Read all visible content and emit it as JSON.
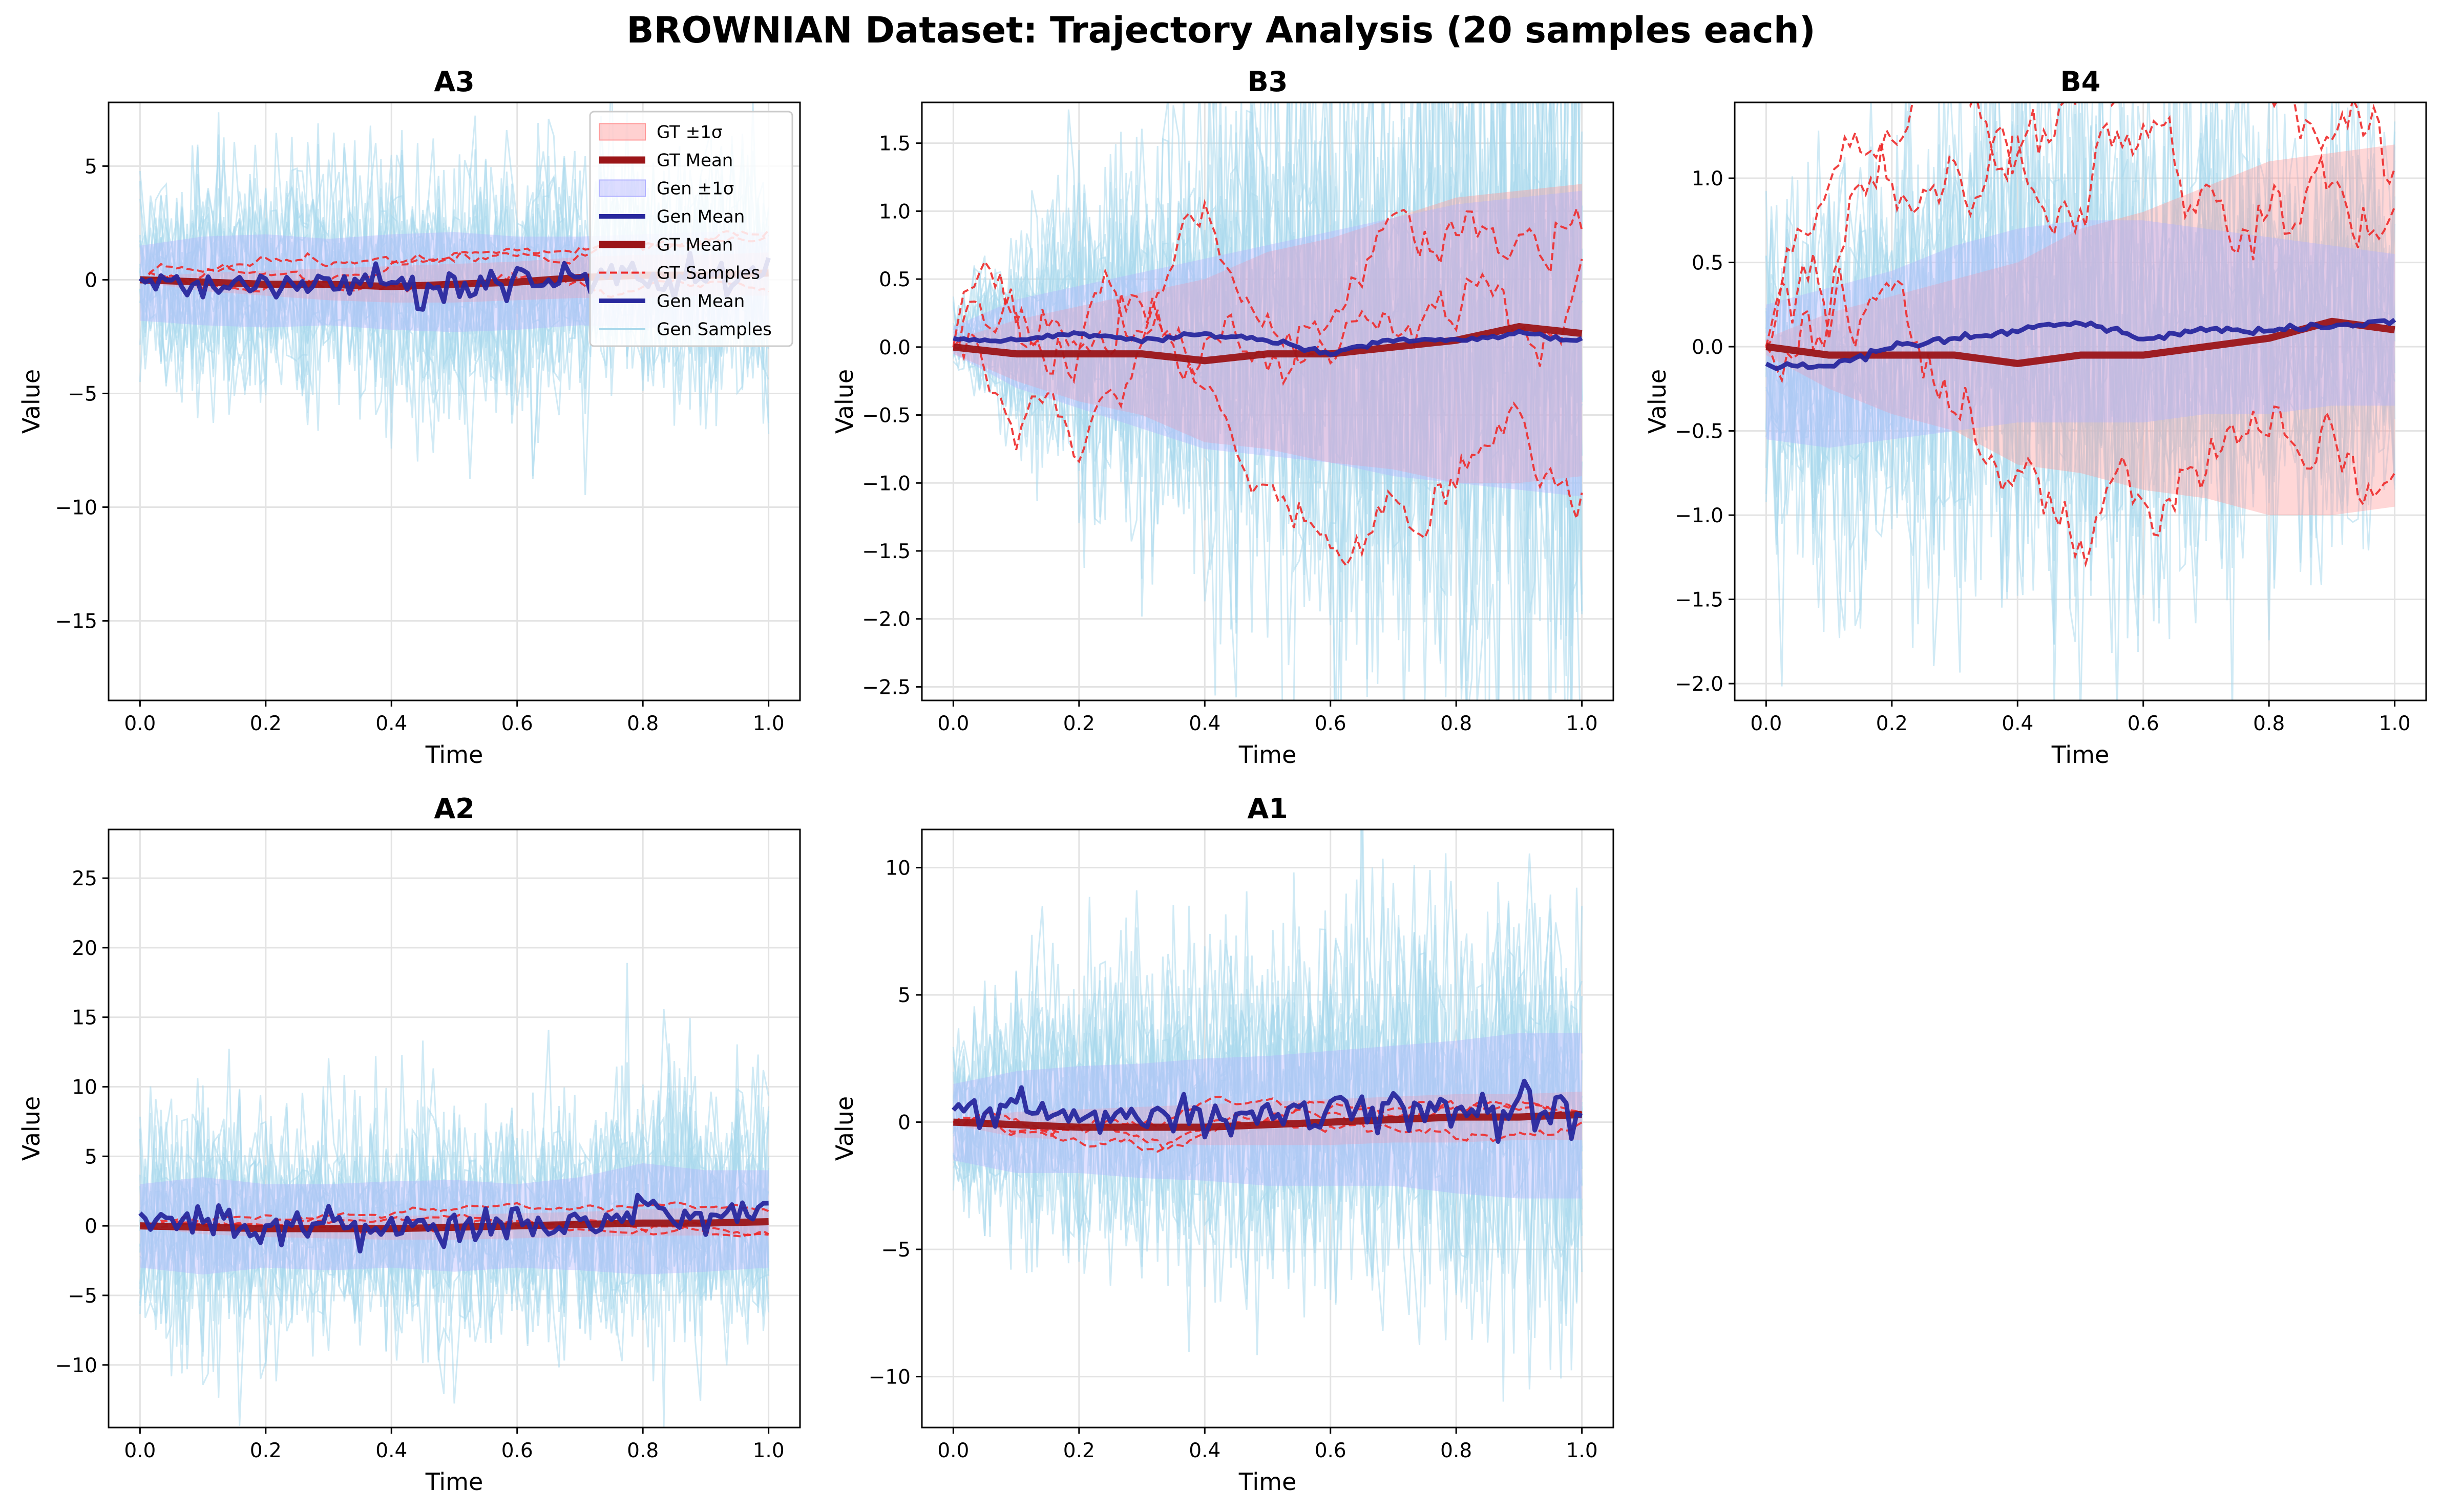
{
  "figure": {
    "title": "BROWNIAN Dataset: Trajectory Analysis (20 samples each)"
  },
  "colors": {
    "gt_band": "#ff9a9a",
    "gt_mean": "#9b1518",
    "gen_band": "#b3b3ff",
    "gen_mean": "#28289e",
    "gt_samples": "#ee2a2a",
    "gen_samples": "#a9d8ec"
  },
  "legend": {
    "placement": "upper-right of panel A3",
    "entries": [
      "GT ±1σ",
      "GT Mean",
      "Gen ±1σ",
      "Gen Mean",
      "GT Mean",
      "GT Samples",
      "Gen Mean",
      "Gen Samples"
    ]
  },
  "chart_data": [
    {
      "type": "line",
      "title": "A3",
      "xlabel": "Time",
      "ylabel": "Value",
      "xlim": [
        -0.05,
        1.05
      ],
      "ylim": [
        -18.5,
        7.8
      ],
      "xticks": [
        0.0,
        0.2,
        0.4,
        0.6,
        0.8,
        1.0
      ],
      "xtick_labels": [
        "0.0",
        "0.2",
        "0.4",
        "0.6",
        "0.8",
        "1.0"
      ],
      "yticks": [
        -15,
        -10,
        -5,
        0,
        5
      ],
      "ytick_labels": [
        "−15",
        "−10",
        "−5",
        "0",
        "5"
      ],
      "grid": true,
      "legend": true,
      "x": [
        0.0,
        0.1,
        0.2,
        0.3,
        0.4,
        0.5,
        0.6,
        0.7,
        0.8,
        0.9,
        1.0
      ],
      "series": [
        {
          "name": "GT Mean",
          "values": [
            0.0,
            -0.1,
            -0.2,
            -0.2,
            -0.3,
            -0.2,
            -0.1,
            0.1,
            0.2,
            0.2,
            0.3
          ]
        },
        {
          "name": "Gen Mean",
          "values": [
            -0.1,
            -0.2,
            -0.3,
            0.0,
            -0.2,
            -0.4,
            0.0,
            0.1,
            0.2,
            0.0,
            0.2
          ]
        },
        {
          "name": "GT ±1σ",
          "upper": [
            0.1,
            0.3,
            0.4,
            0.5,
            0.6,
            0.7,
            0.8,
            1.0,
            1.1,
            1.1,
            1.2
          ],
          "lower": [
            -0.1,
            -0.5,
            -0.7,
            -0.9,
            -1.0,
            -1.0,
            -0.9,
            -0.8,
            -0.8,
            -0.7,
            -0.7
          ]
        },
        {
          "name": "Gen ±1σ",
          "upper": [
            1.5,
            1.9,
            2.0,
            1.8,
            2.0,
            2.1,
            1.9,
            1.9,
            2.0,
            2.1,
            2.1
          ],
          "lower": [
            -1.8,
            -2.0,
            -2.1,
            -2.0,
            -2.2,
            -2.3,
            -2.2,
            -2.0,
            -2.1,
            -2.2,
            -2.3
          ]
        }
      ],
      "sample_count": 20
    },
    {
      "type": "line",
      "title": "B3",
      "xlabel": "Time",
      "ylabel": "Value",
      "xlim": [
        -0.05,
        1.05
      ],
      "ylim": [
        -2.6,
        1.8
      ],
      "xticks": [
        0.0,
        0.2,
        0.4,
        0.6,
        0.8,
        1.0
      ],
      "xtick_labels": [
        "0.0",
        "0.2",
        "0.4",
        "0.6",
        "0.8",
        "1.0"
      ],
      "yticks": [
        -2.5,
        -2.0,
        -1.5,
        -1.0,
        -0.5,
        0.0,
        0.5,
        1.0,
        1.5
      ],
      "ytick_labels": [
        "−2.5",
        "−2.0",
        "−1.5",
        "−1.0",
        "−0.5",
        "0.0",
        "0.5",
        "1.0",
        "1.5"
      ],
      "grid": true,
      "legend": false,
      "x": [
        0.0,
        0.1,
        0.2,
        0.3,
        0.4,
        0.5,
        0.6,
        0.7,
        0.8,
        0.9,
        1.0
      ],
      "series": [
        {
          "name": "GT Mean",
          "values": [
            0.0,
            -0.05,
            -0.05,
            -0.05,
            -0.1,
            -0.05,
            -0.05,
            0.0,
            0.05,
            0.15,
            0.1
          ]
        },
        {
          "name": "Gen Mean",
          "values": [
            0.05,
            0.05,
            0.1,
            0.05,
            0.1,
            0.05,
            -0.05,
            0.05,
            0.05,
            0.1,
            0.05
          ]
        },
        {
          "name": "GT ±1σ",
          "upper": [
            0.05,
            0.2,
            0.3,
            0.4,
            0.5,
            0.7,
            0.8,
            0.95,
            1.1,
            1.15,
            1.2
          ],
          "lower": [
            -0.05,
            -0.25,
            -0.4,
            -0.5,
            -0.7,
            -0.75,
            -0.85,
            -0.9,
            -1.0,
            -1.0,
            -0.95
          ]
        },
        {
          "name": "Gen ±1σ",
          "upper": [
            0.15,
            0.35,
            0.45,
            0.55,
            0.65,
            0.75,
            0.85,
            0.95,
            1.05,
            1.1,
            1.15
          ],
          "lower": [
            -0.05,
            -0.3,
            -0.45,
            -0.6,
            -0.75,
            -0.8,
            -0.85,
            -0.95,
            -1.0,
            -1.05,
            -1.1
          ]
        }
      ],
      "sample_count": 20
    },
    {
      "type": "line",
      "title": "B4",
      "xlabel": "Time",
      "ylabel": "Value",
      "xlim": [
        -0.05,
        1.05
      ],
      "ylim": [
        -2.1,
        1.45
      ],
      "xticks": [
        0.0,
        0.2,
        0.4,
        0.6,
        0.8,
        1.0
      ],
      "xtick_labels": [
        "0.0",
        "0.2",
        "0.4",
        "0.6",
        "0.8",
        "1.0"
      ],
      "yticks": [
        -2.0,
        -1.5,
        -1.0,
        -0.5,
        0.0,
        0.5,
        1.0
      ],
      "ytick_labels": [
        "−2.0",
        "−1.5",
        "−1.0",
        "−0.5",
        "0.0",
        "0.5",
        "1.0"
      ],
      "grid": true,
      "legend": false,
      "x": [
        0.0,
        0.1,
        0.2,
        0.3,
        0.4,
        0.5,
        0.6,
        0.7,
        0.8,
        0.9,
        1.0
      ],
      "series": [
        {
          "name": "GT Mean",
          "values": [
            0.0,
            -0.05,
            -0.05,
            -0.05,
            -0.1,
            -0.05,
            -0.05,
            0.0,
            0.05,
            0.15,
            0.1
          ]
        },
        {
          "name": "Gen Mean",
          "values": [
            -0.12,
            -0.12,
            0.0,
            0.05,
            0.1,
            0.15,
            0.05,
            0.1,
            0.1,
            0.12,
            0.15
          ]
        },
        {
          "name": "GT ±1σ",
          "upper": [
            0.05,
            0.2,
            0.3,
            0.4,
            0.5,
            0.7,
            0.8,
            0.95,
            1.1,
            1.15,
            1.2
          ],
          "lower": [
            -0.05,
            -0.25,
            -0.4,
            -0.5,
            -0.7,
            -0.75,
            -0.85,
            -0.9,
            -1.0,
            -1.0,
            -0.95
          ]
        },
        {
          "name": "Gen ±1σ",
          "upper": [
            0.25,
            0.35,
            0.45,
            0.6,
            0.7,
            0.75,
            0.75,
            0.7,
            0.65,
            0.6,
            0.55
          ],
          "lower": [
            -0.55,
            -0.6,
            -0.55,
            -0.5,
            -0.45,
            -0.45,
            -0.45,
            -0.4,
            -0.4,
            -0.35,
            -0.35
          ]
        }
      ],
      "sample_count": 20
    },
    {
      "type": "line",
      "title": "A2",
      "xlabel": "Time",
      "ylabel": "Value",
      "xlim": [
        -0.05,
        1.05
      ],
      "ylim": [
        -14.5,
        28.5
      ],
      "xticks": [
        0.0,
        0.2,
        0.4,
        0.6,
        0.8,
        1.0
      ],
      "xtick_labels": [
        "0.0",
        "0.2",
        "0.4",
        "0.6",
        "0.8",
        "1.0"
      ],
      "yticks": [
        -10,
        -5,
        0,
        5,
        10,
        15,
        20,
        25
      ],
      "ytick_labels": [
        "−10",
        "−5",
        "0",
        "5",
        "10",
        "15",
        "20",
        "25"
      ],
      "grid": true,
      "legend": false,
      "x": [
        0.0,
        0.1,
        0.2,
        0.3,
        0.4,
        0.5,
        0.6,
        0.7,
        0.8,
        0.9,
        1.0
      ],
      "series": [
        {
          "name": "GT Mean",
          "values": [
            0.0,
            -0.1,
            -0.2,
            -0.2,
            -0.2,
            -0.1,
            0.0,
            0.1,
            0.2,
            0.2,
            0.3
          ]
        },
        {
          "name": "Gen Mean",
          "values": [
            0.0,
            0.8,
            -0.6,
            0.2,
            -0.3,
            0.1,
            0.3,
            0.2,
            1.5,
            0.5,
            1.3
          ]
        },
        {
          "name": "GT ±1σ",
          "upper": [
            0.1,
            0.4,
            0.5,
            0.6,
            0.7,
            0.8,
            0.9,
            1.0,
            1.2,
            1.3,
            1.3
          ],
          "lower": [
            -0.1,
            -0.6,
            -0.8,
            -0.9,
            -1.0,
            -1.0,
            -0.9,
            -0.8,
            -0.7,
            -0.7,
            -0.6
          ]
        },
        {
          "name": "Gen ±1σ",
          "upper": [
            3.0,
            3.5,
            3.0,
            3.0,
            3.2,
            3.3,
            3.0,
            3.5,
            4.5,
            4.0,
            4.0
          ],
          "lower": [
            -3.0,
            -3.5,
            -3.0,
            -3.2,
            -3.0,
            -3.3,
            -3.0,
            -3.2,
            -3.5,
            -3.3,
            -3.0
          ]
        }
      ],
      "sample_count": 20
    },
    {
      "type": "line",
      "title": "A1",
      "xlabel": "Time",
      "ylabel": "Value",
      "xlim": [
        -0.05,
        1.05
      ],
      "ylim": [
        -12,
        11.5
      ],
      "xticks": [
        0.0,
        0.2,
        0.4,
        0.6,
        0.8,
        1.0
      ],
      "xtick_labels": [
        "0.0",
        "0.2",
        "0.4",
        "0.6",
        "0.8",
        "1.0"
      ],
      "yticks": [
        -10,
        -5,
        0,
        5,
        10
      ],
      "ytick_labels": [
        "−10",
        "−5",
        "0",
        "5",
        "10"
      ],
      "grid": true,
      "legend": false,
      "x": [
        0.0,
        0.1,
        0.2,
        0.3,
        0.4,
        0.5,
        0.6,
        0.7,
        0.8,
        0.9,
        1.0
      ],
      "series": [
        {
          "name": "GT Mean",
          "values": [
            0.0,
            -0.1,
            -0.2,
            -0.2,
            -0.2,
            -0.1,
            0.0,
            0.1,
            0.2,
            0.2,
            0.3
          ]
        },
        {
          "name": "Gen Mean",
          "values": [
            0.2,
            0.4,
            0.2,
            0.4,
            0.0,
            0.3,
            0.4,
            0.8,
            0.5,
            0.3,
            0.2
          ]
        },
        {
          "name": "GT ±1σ",
          "upper": [
            0.1,
            0.4,
            0.5,
            0.6,
            0.7,
            0.8,
            0.9,
            1.0,
            1.1,
            1.1,
            1.2
          ],
          "lower": [
            -0.1,
            -0.6,
            -0.7,
            -0.8,
            -0.9,
            -0.9,
            -0.9,
            -0.8,
            -0.8,
            -0.7,
            -0.7
          ]
        },
        {
          "name": "Gen ±1σ",
          "upper": [
            1.5,
            2.0,
            2.2,
            2.3,
            2.5,
            2.6,
            2.8,
            3.0,
            3.2,
            3.5,
            3.5
          ],
          "lower": [
            -1.5,
            -2.0,
            -2.0,
            -2.2,
            -2.3,
            -2.5,
            -2.5,
            -2.5,
            -2.8,
            -3.0,
            -3.0
          ]
        }
      ],
      "sample_count": 20
    }
  ]
}
